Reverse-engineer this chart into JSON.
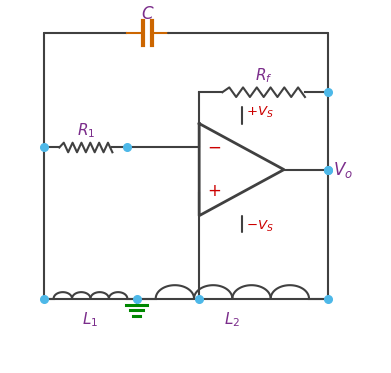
{
  "bg_color": "#ffffff",
  "line_color": "#404040",
  "dot_color": "#4db8e8",
  "resistor_color": "#404040",
  "inductor_color": "#404040",
  "capacitor_color": "#cc6600",
  "label_color": "#7b2d8b",
  "vs_color": "#cc0000",
  "ground_color": "#008800",
  "opamp_color": "#404040",
  "figsize": [
    3.91,
    3.73
  ],
  "dpi": 100
}
